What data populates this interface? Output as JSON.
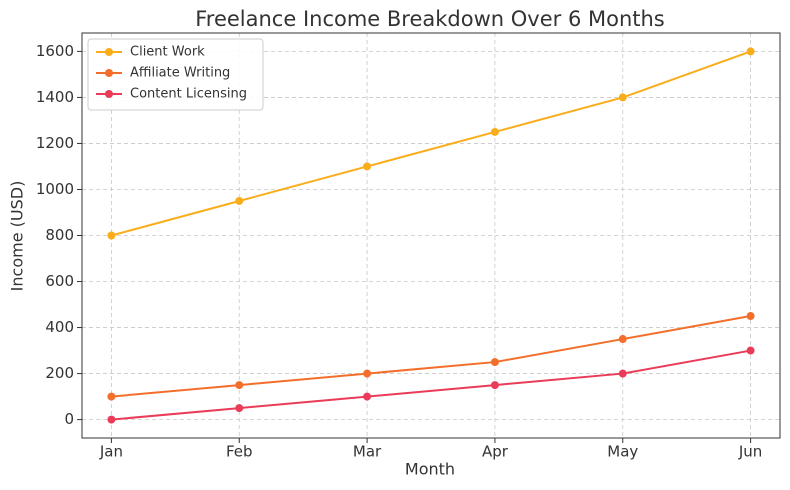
{
  "chart_data": {
    "type": "line",
    "title": "Freelance Income Breakdown Over 6 Months",
    "x_label": "Month",
    "y_label": "Income (USD)",
    "categories": [
      "Jan",
      "Feb",
      "Mar",
      "Apr",
      "May",
      "Jun"
    ],
    "series": [
      {
        "name": "Client Work",
        "color": "#f9ad1b",
        "values": [
          800,
          950,
          1100,
          1250,
          1400,
          1600
        ]
      },
      {
        "name": "Affiliate Writing",
        "color": "#f26e2a",
        "values": [
          100,
          150,
          200,
          250,
          350,
          450
        ]
      },
      {
        "name": "Content Licensing",
        "color": "#ea3b59",
        "values": [
          0,
          50,
          100,
          150,
          200,
          300
        ]
      }
    ],
    "ylim": [
      -80,
      1680
    ],
    "yticks": [
      0,
      200,
      400,
      600,
      800,
      1000,
      1200,
      1400,
      1600
    ],
    "grid": true,
    "legend": "upper left"
  }
}
